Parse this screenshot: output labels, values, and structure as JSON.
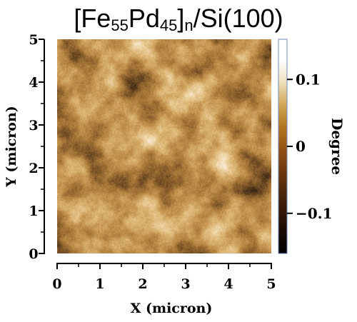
{
  "title": {
    "prefix": "[Fe",
    "sub1": "55",
    "mid": "Pd",
    "sub2": "45",
    "close": "]",
    "sub3": "n",
    "suffix": "/Si(100)"
  },
  "axes": {
    "xlabel": "X  (micron)",
    "ylabel": "Y  (micron)",
    "xticks": [
      "0",
      "1",
      "2",
      "3",
      "4",
      "5"
    ],
    "yticks": [
      "0",
      "1",
      "2",
      "3",
      "4",
      "5"
    ],
    "xrange": [
      0,
      5
    ],
    "yrange": [
      0,
      5
    ]
  },
  "colorbar": {
    "label": "Degree",
    "ticks": [
      {
        "value": 0.1,
        "label": "0.1"
      },
      {
        "value": 0,
        "label": "0"
      },
      {
        "value": -0.1,
        "label": "−0.1"
      }
    ],
    "range": [
      -0.16,
      0.16
    ],
    "colors": [
      "#000000",
      "#3a1a04",
      "#7a3f0c",
      "#b2761f",
      "#d8b060",
      "#f4e8c8",
      "#ffffff"
    ]
  }
}
